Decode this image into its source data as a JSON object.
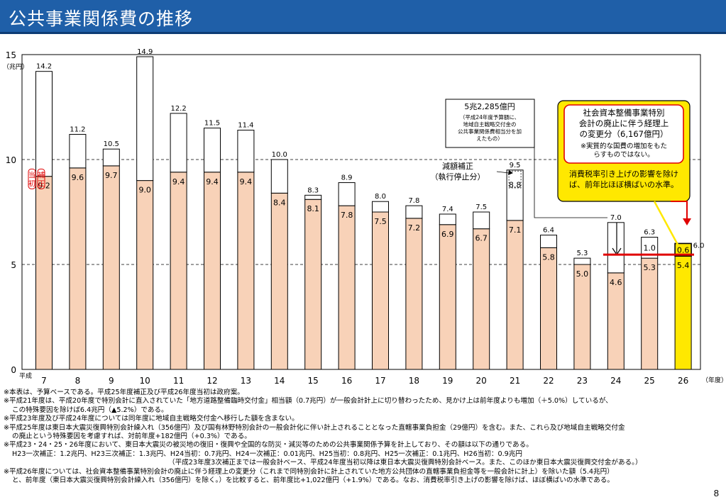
{
  "page": {
    "title": "公共事業関係費の推移",
    "page_number": "8"
  },
  "chart_data": {
    "type": "bar",
    "title": "",
    "ylabel": "（兆円）",
    "xlabel": "（年度）",
    "x_prefix": "平成",
    "ylim": [
      0,
      15
    ],
    "yticks": [
      0,
      5,
      10,
      15
    ],
    "gridlines": [
      5,
      10
    ],
    "categories": [
      "7",
      "8",
      "9",
      "10",
      "11",
      "12",
      "13",
      "14",
      "15",
      "16",
      "17",
      "18",
      "19",
      "20",
      "21",
      "22",
      "23",
      "24",
      "25",
      "26"
    ],
    "totals": [
      14.2,
      11.2,
      10.5,
      14.9,
      12.2,
      11.5,
      11.4,
      10.0,
      8.3,
      8.9,
      8.0,
      7.8,
      7.4,
      7.5,
      9.5,
      6.4,
      5.3,
      7.0,
      6.3,
      6.0
    ],
    "base_values": [
      9.2,
      9.6,
      9.7,
      9.0,
      9.4,
      9.4,
      9.4,
      8.4,
      8.1,
      7.8,
      7.5,
      7.2,
      6.9,
      6.7,
      7.1,
      5.8,
      5.0,
      4.6,
      5.3,
      5.4
    ],
    "inner_labels": {
      "21": "8.8",
      "25": "1.0",
      "26": "0.6"
    },
    "series": [
      {
        "name": "当初",
        "color": "#f8d2b8"
      },
      {
        "name": "補正",
        "color": "#ffffff"
      }
    ],
    "highlight_color": "#ffe800",
    "annotations": {
      "fy7_label": [
        "当",
        "初"
      ],
      "fy7_label2": [
        "補",
        "正"
      ],
      "box1_head": "5兆2,285億円",
      "box1_body": [
        "（平成24年度予算額に、",
        "地域自主戦略交付金の",
        "公共事業関係費相当分を加",
        "えたもの）"
      ],
      "genga_label": [
        "減額補正",
        "（執行停止分）"
      ],
      "box2_body": [
        "社会資本整備事業特別",
        "会計の廃止に伴う経理上",
        "の変更分（6,167億円）"
      ],
      "box2_note": [
        "※実質的な国費の増加をもた",
        "らすものではない。"
      ],
      "box2_tax": [
        "消費税率引き上げの影響を除け",
        "ば、前年比ほぼ横ばいの水準。"
      ]
    }
  },
  "notes": [
    "※本表は、予算ベースである。平成25年度補正及び平成26年度当初は政府案。",
    "※平成21年度は、平成20年度で特別会計に直入されていた「地方道路整備臨時交付金」相当額（0.7兆円）が一般会計計上に切り替わったため、見かけ上は前年度よりも増加（＋5.0%）しているが、",
    "この特殊要因を除けば6.4兆円（▲5.2%）である。",
    "※平成23年度及び平成24年度については同年度に地域自主戦略交付金へ移行した額を含まない。",
    "※平成25年度は東日本大震災復興特別会計繰入れ（356億円）及び国有林野特別会計の一般会計化に伴い計上されることとなった直轄事業負担金（29億円）を含む。また、これら及び地域自主戦略交付金",
    "の廃止という特殊要因を考慮すれば、対前年度+182億円（+0.3%）である。",
    "※平成23・24・25・26年度において、東日本大震災の被災地の復旧・復興や全国的な防災・減災等のための公共事業関係予算を計上しており、その額は以下の通りである。",
    "H23一次補正：1.2兆円、H23三次補正：1.3兆円、H24当初：0.7兆円、H24一次補正：0.01兆円、H25当初：0.8兆円、H25一次補正：0.1兆円、H26当初：0.9兆円",
    "（平成23年度3次補正までは一般会計ベース、平成24年度当初以降は東日本大震災復興特別会計ベース。また、このほか東日本大震災復興交付金がある。）",
    "※平成26年度については、社会資本整備事業特別会計の廃止に伴う経理上の変更分（これまで同特別会計に計上されていた地方公共団体の直轄事業負担金等を一般会計に計上）を除いた額（5.4兆円）",
    "と、前年度（東日本大震災復興特別会計繰入れ（356億円）を除く。）を比較すると、前年度比+1,022億円（+1.9%）である。なお、消費税率引き上げの影響を除けば、ほぼ横ばいの水準である。"
  ]
}
